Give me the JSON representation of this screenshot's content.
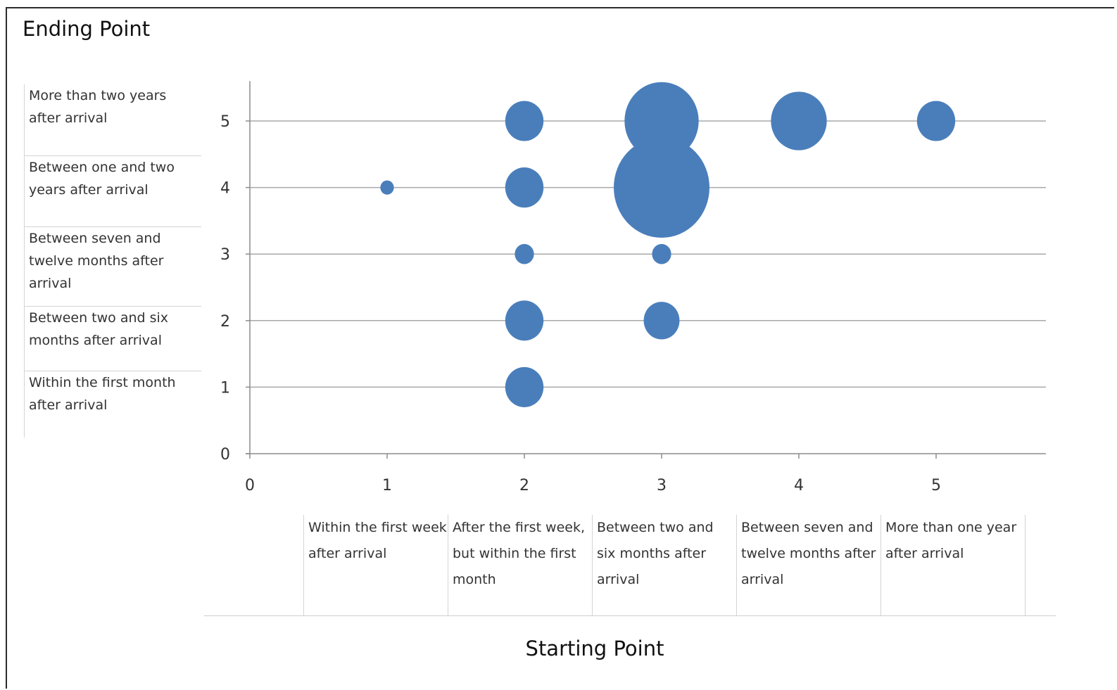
{
  "chart_data": {
    "type": "bubble",
    "ylabel": "Ending Point",
    "xlabel": "Starting Point",
    "xlim": [
      0,
      5.8
    ],
    "ylim": [
      0,
      5.6
    ],
    "xticks": [
      0,
      1,
      2,
      3,
      4,
      5
    ],
    "yticks": [
      0,
      1,
      2,
      3,
      4,
      5
    ],
    "grid": "horizontal",
    "color": "#4a7ebb",
    "points": [
      {
        "x": 1,
        "y": 4,
        "size": 1
      },
      {
        "x": 2,
        "y": 5,
        "size": 8
      },
      {
        "x": 2,
        "y": 4,
        "size": 8
      },
      {
        "x": 2,
        "y": 3,
        "size": 2
      },
      {
        "x": 2,
        "y": 2,
        "size": 8
      },
      {
        "x": 2,
        "y": 1,
        "size": 8
      },
      {
        "x": 3,
        "y": 5,
        "size": 30
      },
      {
        "x": 3,
        "y": 4,
        "size": 50
      },
      {
        "x": 3,
        "y": 3,
        "size": 2
      },
      {
        "x": 3,
        "y": 2,
        "size": 7
      },
      {
        "x": 4,
        "y": 5,
        "size": 17
      },
      {
        "x": 5,
        "y": 5,
        "size": 8
      }
    ],
    "y_categories": [
      {
        "value": 5,
        "label": "More than two years after arrival"
      },
      {
        "value": 4,
        "label": "Between one and two years after arrival"
      },
      {
        "value": 3,
        "label": "Between seven and twelve months after arrival"
      },
      {
        "value": 2,
        "label": "Between two and six months after arrival"
      },
      {
        "value": 1,
        "label": "Within the first month after arrival"
      }
    ],
    "x_categories": [
      {
        "value": 1,
        "label": "Within the first week after arrival"
      },
      {
        "value": 2,
        "label": "After the first week, but within the first month"
      },
      {
        "value": 3,
        "label": "Between two and six months after arrival"
      },
      {
        "value": 4,
        "label": "Between seven and twelve months after arrival"
      },
      {
        "value": 5,
        "label": "More than one year after arrival"
      }
    ]
  }
}
